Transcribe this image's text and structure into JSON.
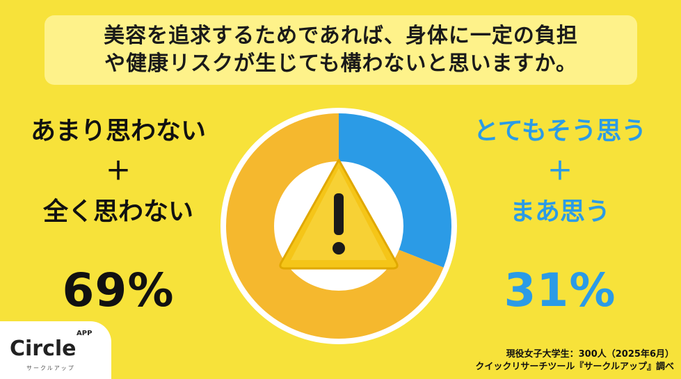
{
  "question": "美容を追求するためであれば、身体に一定の負担\nや健康リスクが生じても構わないと思いますか。",
  "left": {
    "line1": "あまり思わない",
    "plus": "＋",
    "line2": "全く思わない",
    "percent_label": "69%"
  },
  "right": {
    "line1": "とてもそう思う",
    "plus": "＋",
    "line2": "まあ思う",
    "percent_label": "31%"
  },
  "source": {
    "line1": "現役女子大学生：300人（2025年6月）",
    "line2": "クイックリサーチツール『サークルアップ』調べ"
  },
  "logo": {
    "word": "Circle",
    "app": "APP",
    "sub": "サークルアップ"
  },
  "colors": {
    "background": "#f7e23a",
    "disagree": "#f5b82e",
    "agree": "#2b9be6",
    "warning": "#f5c518"
  },
  "center_icon": "warning-icon",
  "chart_data": {
    "type": "pie",
    "donut": true,
    "start": "top",
    "direction": "clockwise",
    "slices": [
      {
        "label": "とてもそう思う＋まあ思う",
        "value": 31,
        "color": "#2b9be6"
      },
      {
        "label": "あまり思わない＋全く思わない",
        "value": 69,
        "color": "#f5b82e"
      }
    ]
  }
}
